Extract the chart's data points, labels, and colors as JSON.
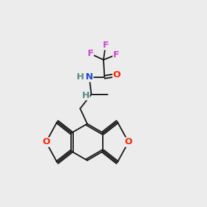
{
  "bg_color": "#ececec",
  "bond_color": "#1a1a1a",
  "bond_width": 1.4,
  "atom_colors": {
    "F": "#cc44cc",
    "O": "#ff2200",
    "N": "#2244cc",
    "H": "#558888",
    "C": "#1a1a1a"
  },
  "font_size_atom": 9.5,
  "figsize": [
    3.0,
    3.0
  ],
  "dpi": 100
}
